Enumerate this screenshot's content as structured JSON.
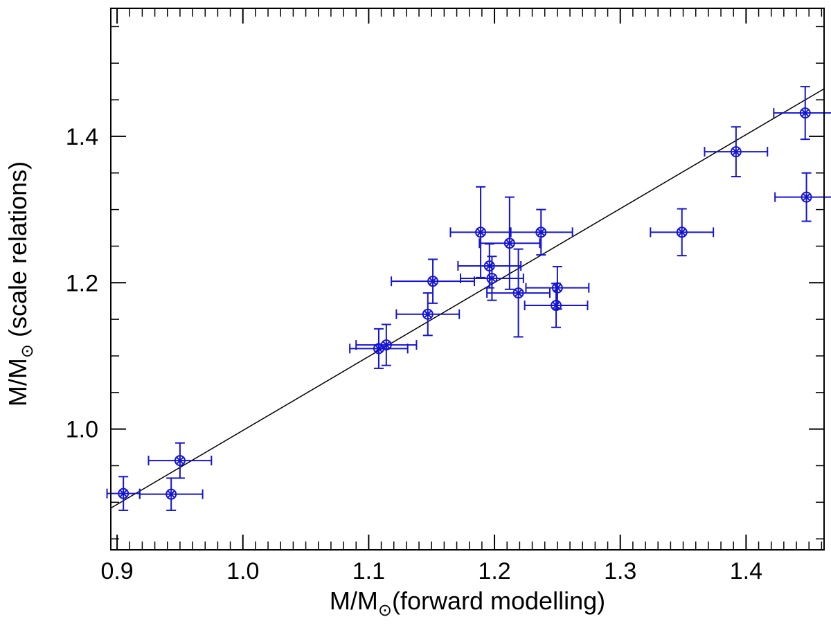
{
  "chart_data": {
    "type": "scatter",
    "title": "",
    "xlabel": {
      "prefix": "M/M",
      "sub": "⊙",
      "suffix": "(forward modelling)"
    },
    "ylabel": {
      "prefix": "M/M",
      "sub": "⊙",
      "suffix": " (scale relations)"
    },
    "xlim": [
      0.895,
      1.462
    ],
    "ylim": [
      0.835,
      1.575
    ],
    "x_ticks": [
      0.9,
      1.0,
      1.1,
      1.2,
      1.3,
      1.4
    ],
    "x_tick_labels": [
      "0.9",
      "1.0",
      "1.1",
      "1.2",
      "1.3",
      "1.4"
    ],
    "y_ticks": [
      1.0,
      1.2,
      1.4
    ],
    "y_tick_labels": [
      "1.0",
      "1.2",
      "1.4"
    ],
    "x_minor_step": 0.01,
    "y_minor_step": 0.05,
    "grid": false,
    "marker": "circled-x",
    "series_color": "#1414d2",
    "fit_line_color": "#000000",
    "fit_line": {
      "x": [
        0.895,
        1.462
      ],
      "y": [
        0.892,
        1.465
      ]
    },
    "points": [
      {
        "x": 0.905,
        "y": 0.912,
        "xerr": 0.013,
        "yerr": 0.023
      },
      {
        "x": 0.943,
        "y": 0.911,
        "xerr": 0.025,
        "yerr": 0.022
      },
      {
        "x": 0.95,
        "y": 0.957,
        "xerr": 0.025,
        "yerr": 0.024
      },
      {
        "x": 1.108,
        "y": 1.11,
        "xerr": 0.023,
        "yerr": 0.027
      },
      {
        "x": 1.114,
        "y": 1.115,
        "xerr": 0.024,
        "yerr": 0.028
      },
      {
        "x": 1.147,
        "y": 1.157,
        "xerr": 0.025,
        "yerr": 0.029
      },
      {
        "x": 1.151,
        "y": 1.202,
        "xerr": 0.033,
        "yerr": 0.03
      },
      {
        "x": 1.189,
        "y": 1.269,
        "xerr": 0.024,
        "yerr": 0.062
      },
      {
        "x": 1.196,
        "y": 1.223,
        "xerr": 0.025,
        "yerr": 0.03
      },
      {
        "x": 1.198,
        "y": 1.206,
        "xerr": 0.025,
        "yerr": 0.03
      },
      {
        "x": 1.212,
        "y": 1.254,
        "xerr": 0.024,
        "yerr": 0.063
      },
      {
        "x": 1.219,
        "y": 1.186,
        "xerr": 0.025,
        "yerr": 0.06
      },
      {
        "x": 1.237,
        "y": 1.269,
        "xerr": 0.025,
        "yerr": 0.031
      },
      {
        "x": 1.249,
        "y": 1.169,
        "xerr": 0.025,
        "yerr": 0.03
      },
      {
        "x": 1.25,
        "y": 1.193,
        "xerr": 0.025,
        "yerr": 0.029
      },
      {
        "x": 1.349,
        "y": 1.269,
        "xerr": 0.025,
        "yerr": 0.032
      },
      {
        "x": 1.392,
        "y": 1.379,
        "xerr": 0.025,
        "yerr": 0.034
      },
      {
        "x": 1.447,
        "y": 1.432,
        "xerr": 0.025,
        "yerr": 0.036
      },
      {
        "x": 1.448,
        "y": 1.317,
        "xerr": 0.025,
        "yerr": 0.033
      }
    ]
  }
}
